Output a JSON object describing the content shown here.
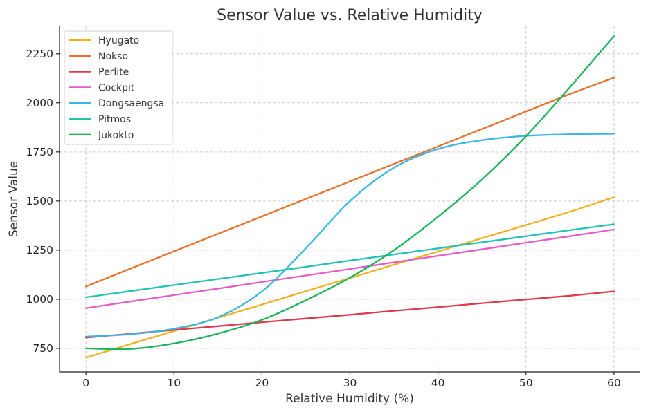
{
  "chart_data": {
    "type": "line",
    "title": "Sensor Value vs. Relative Humidity",
    "xlabel": "Relative Humidity (%)",
    "ylabel": "Sensor Value",
    "xlim": [
      -3,
      63
    ],
    "ylim": [
      630,
      2390
    ],
    "xticks": [
      0,
      10,
      20,
      30,
      40,
      50,
      60
    ],
    "yticks": [
      750,
      1000,
      1250,
      1500,
      1750,
      2000,
      2250
    ],
    "grid": true,
    "legend_position": "top-left",
    "x": [
      0,
      5,
      10,
      15,
      20,
      25,
      30,
      35,
      40,
      45,
      50,
      55,
      60
    ],
    "series": [
      {
        "name": "Hyugato",
        "color": "#f2b01e",
        "values": [
          703,
          771,
          838,
          906,
          973,
          1041,
          1108,
          1176,
          1243,
          1311,
          1378,
          1446,
          1520
        ]
      },
      {
        "name": "Nokso",
        "color": "#e8702a",
        "values": [
          1065,
          1155,
          1244,
          1333,
          1422,
          1511,
          1600,
          1689,
          1778,
          1867,
          1956,
          2045,
          2128
        ]
      },
      {
        "name": "Perlite",
        "color": "#de3a4c",
        "values": [
          805,
          824,
          844,
          863,
          883,
          902,
          921,
          941,
          960,
          980,
          999,
          1018,
          1040
        ]
      },
      {
        "name": "Cockpit",
        "color": "#e65cc7",
        "values": [
          955,
          988,
          1021,
          1054,
          1088,
          1121,
          1154,
          1188,
          1221,
          1254,
          1288,
          1321,
          1355
        ]
      },
      {
        "name": "Dongsaengsa",
        "color": "#39b5e8",
        "values": [
          810,
          822,
          850,
          908,
          1040,
          1260,
          1500,
          1670,
          1765,
          1810,
          1832,
          1840,
          1843
        ]
      },
      {
        "name": "Pitmos",
        "color": "#22c1b5",
        "values": [
          1010,
          1041,
          1072,
          1103,
          1134,
          1165,
          1197,
          1228,
          1259,
          1290,
          1321,
          1352,
          1382
        ]
      },
      {
        "name": "Jukokto",
        "color": "#1fb45a",
        "values": [
          750,
          747,
          775,
          825,
          895,
          995,
          1110,
          1250,
          1420,
          1610,
          1830,
          2080,
          2340
        ]
      }
    ]
  }
}
